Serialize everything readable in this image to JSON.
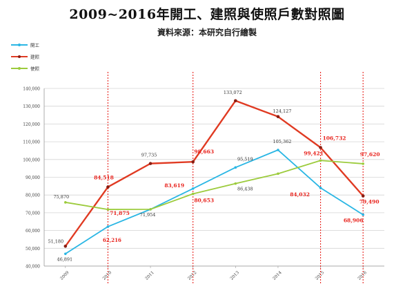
{
  "header": {
    "title": "2009~2016年開工、建照與使照戶數對照圖",
    "subtitle": "資料來源：本研究自行繪製"
  },
  "chart_data": {
    "type": "line",
    "title": "2009~2016年開工、建照與使照戶數對照圖",
    "subtitle": "資料來源：本研究自行繪製",
    "categories": [
      "2009",
      "2010",
      "2011",
      "2012",
      "2013",
      "2014",
      "2015",
      "2016"
    ],
    "ylim": [
      40000,
      140000
    ],
    "yticks": [
      "40,000",
      "50,000",
      "60,000",
      "70,000",
      "80,000",
      "90,000",
      "100,000",
      "110,000",
      "120,000",
      "130,000",
      "140,000"
    ],
    "grid": true,
    "legend_position": "top-left",
    "highlighted_years": [
      "2010",
      "2012",
      "2015",
      "2016"
    ],
    "series": [
      {
        "name": "開工",
        "color": "#29b6e4",
        "values": [
          46891,
          62216,
          71954,
          83619,
          95519,
          105362,
          84032,
          68906
        ],
        "labels": [
          "46,891",
          "62,216",
          "71,954",
          "83,619",
          "95,519",
          "105,362",
          "84,032",
          "68,906"
        ]
      },
      {
        "name": "建照",
        "color": "#e03a22",
        "values": [
          51180,
          84518,
          97735,
          98663,
          133072,
          124127,
          106732,
          79490
        ],
        "labels": [
          "51,180",
          "84,518",
          "97,735",
          "98,663",
          "133,072",
          "124,127",
          "106,732",
          "79,490"
        ]
      },
      {
        "name": "使照",
        "color": "#9ccb3c",
        "values": [
          75870,
          71875,
          71954,
          80653,
          86438,
          92000,
          99421,
          97620
        ],
        "labels": [
          "75,870",
          "71,875",
          "",
          "80,653",
          "86,438",
          "",
          "99,421",
          "97,620"
        ]
      }
    ],
    "label_colors": {
      "dark": "#333333",
      "red": "#e8231d"
    }
  }
}
